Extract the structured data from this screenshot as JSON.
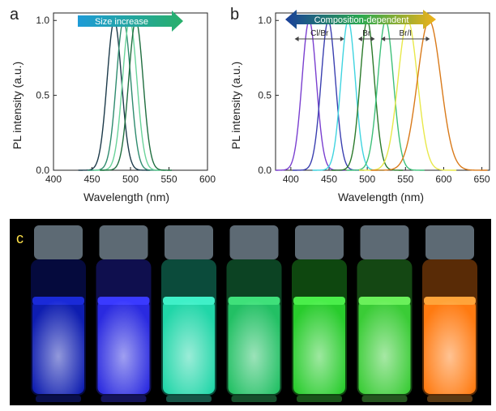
{
  "panels": {
    "a": "a",
    "b": "b",
    "c": "c"
  },
  "chart_data": [
    {
      "panel": "a",
      "type": "line",
      "xlabel": "Wavelength (nm)",
      "ylabel": "PL intensity (a.u.)",
      "xlim": [
        400,
        600
      ],
      "ylim": [
        0,
        1.05
      ],
      "xticks": [
        400,
        450,
        500,
        550,
        600
      ],
      "yticks": [
        0.0,
        0.5,
        1.0
      ],
      "annotation": "Size increase",
      "annotation_colors": [
        "#1e9bd7",
        "#29b06a"
      ],
      "series": [
        {
          "peak": 479,
          "fwhm": 22,
          "color": "#1c3a4a"
        },
        {
          "peak": 491,
          "fwhm": 22,
          "color": "#2e8b6e"
        },
        {
          "peak": 499,
          "fwhm": 22,
          "color": "#6ad39a"
        },
        {
          "peak": 507,
          "fwhm": 22,
          "color": "#1f6e3f"
        }
      ]
    },
    {
      "panel": "b",
      "type": "line",
      "xlabel": "Wavelength (nm)",
      "ylabel": "PL intensity (a.u.)",
      "xlim": [
        380,
        660
      ],
      "ylim": [
        0,
        1.05
      ],
      "xticks": [
        400,
        450,
        500,
        550,
        600,
        650
      ],
      "yticks": [
        0.0,
        0.5,
        1.0
      ],
      "annotation": "Composition-dependent",
      "annotation_colors": [
        "#1a3f9a",
        "#2aa84f",
        "#f0b21a"
      ],
      "groups": [
        {
          "label": "Cl/Br",
          "from": 405,
          "to": 470
        },
        {
          "label": "Br",
          "from": 488,
          "to": 510
        },
        {
          "label": "Br/I",
          "from": 518,
          "to": 582
        }
      ],
      "series": [
        {
          "peak": 424,
          "fwhm": 22,
          "color": "#7a3fd0"
        },
        {
          "peak": 449,
          "fwhm": 22,
          "color": "#3a3fb0"
        },
        {
          "peak": 475,
          "fwhm": 22,
          "color": "#3fd4e0"
        },
        {
          "peak": 500,
          "fwhm": 22,
          "color": "#2a7a2a"
        },
        {
          "peak": 524,
          "fwhm": 24,
          "color": "#3ec07a"
        },
        {
          "peak": 553,
          "fwhm": 30,
          "color": "#e8e84a"
        },
        {
          "peak": 581,
          "fwhm": 36,
          "color": "#d97a1a"
        }
      ]
    }
  ],
  "photo": {
    "vials": [
      {
        "glow": "#1a2ad8",
        "liquid": "#0e1db0"
      },
      {
        "glow": "#3a3aff",
        "liquid": "#2a2ae0"
      },
      {
        "glow": "#3ff0c8",
        "liquid": "#20d6a8"
      },
      {
        "glow": "#3fe07a",
        "liquid": "#22c064"
      },
      {
        "glow": "#4aee4a",
        "liquid": "#28cc2c"
      },
      {
        "glow": "#6af05a",
        "liquid": "#3acc36"
      },
      {
        "glow": "#ffa43a",
        "liquid": "#ff7a10"
      }
    ]
  }
}
